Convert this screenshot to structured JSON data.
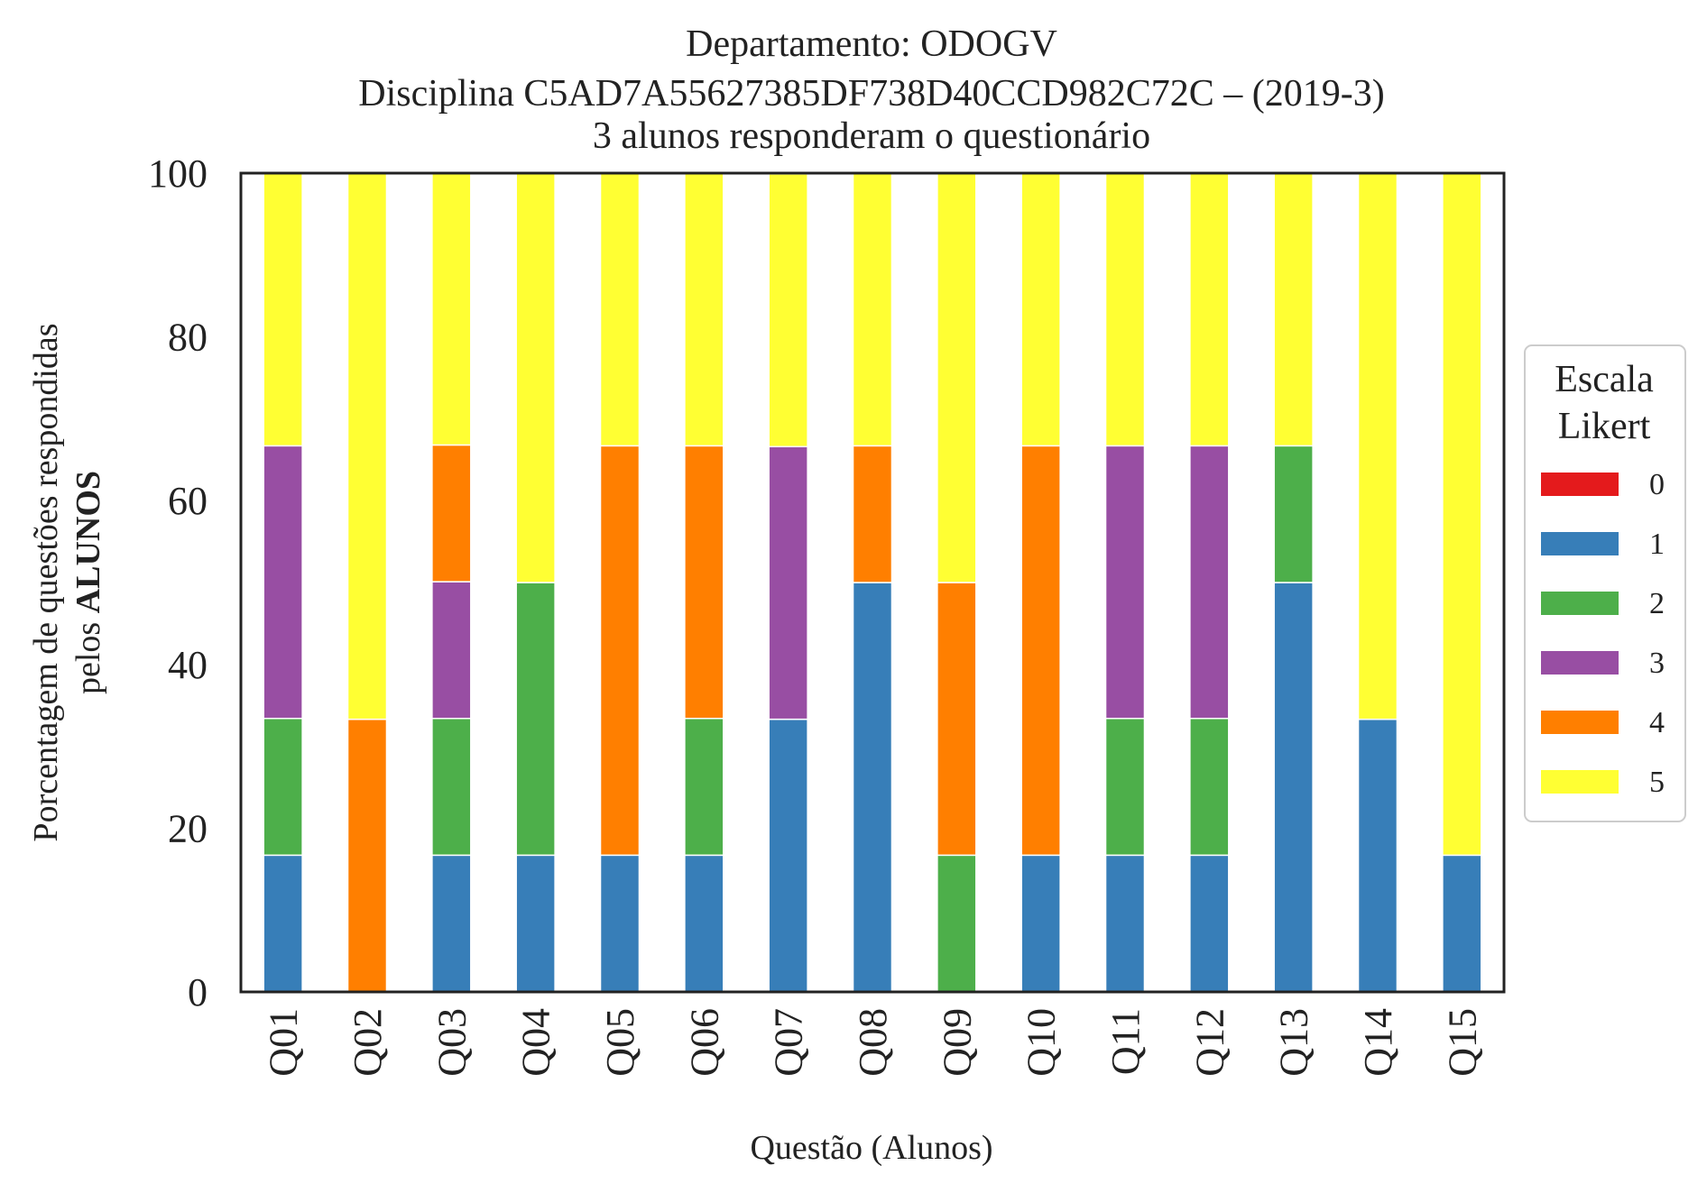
{
  "chart_data": {
    "type": "bar",
    "stacked": true,
    "title_lines": [
      "Departamento: ODOGV",
      "Disciplina C5AD7A55627385DF738D40CCD982C72C – (2019-3)",
      "3 alunos responderam o questionário"
    ],
    "xlabel": "Questão (Alunos)",
    "ylabel_line1": "Porcentagem de questões respondidas",
    "ylabel_line2_prefix": "pelos ",
    "ylabel_line2_bold": "ALUNOS",
    "ylim": [
      0,
      100
    ],
    "yticks": [
      "0",
      "20",
      "40",
      "60",
      "80",
      "100"
    ],
    "categories": [
      "Q01",
      "Q02",
      "Q03",
      "Q04",
      "Q05",
      "Q06",
      "Q07",
      "Q08",
      "Q09",
      "Q10",
      "Q11",
      "Q12",
      "Q13",
      "Q14",
      "Q15"
    ],
    "legend_title_lines": [
      "Escala",
      "Likert"
    ],
    "legend_position": "center-right",
    "series": [
      {
        "name": "0",
        "color": "#e41a1c",
        "values": [
          0,
          0,
          0,
          0,
          0,
          0,
          0,
          0,
          0,
          0,
          0,
          0,
          0,
          0,
          0
        ]
      },
      {
        "name": "1",
        "color": "#377eb8",
        "values": [
          16.7,
          0,
          16.7,
          16.7,
          16.7,
          16.7,
          33.3,
          50,
          0,
          16.7,
          16.7,
          16.7,
          50,
          33.3,
          16.7
        ]
      },
      {
        "name": "2",
        "color": "#4daf4a",
        "values": [
          16.7,
          0,
          16.7,
          33.3,
          0,
          16.7,
          0,
          0,
          16.7,
          0,
          16.7,
          16.7,
          16.7,
          0,
          0
        ]
      },
      {
        "name": "3",
        "color": "#984ea3",
        "values": [
          33.3,
          0,
          16.7,
          0,
          0,
          0,
          33.3,
          0,
          0,
          0,
          33.3,
          33.3,
          0,
          0,
          0
        ]
      },
      {
        "name": "4",
        "color": "#ff7f00",
        "values": [
          0,
          33.3,
          16.7,
          0,
          50,
          33.3,
          0,
          16.7,
          33.3,
          50,
          0,
          0,
          0,
          0,
          0
        ]
      },
      {
        "name": "5",
        "color": "#ffff33",
        "values": [
          33.3,
          66.7,
          33.3,
          50,
          33.3,
          33.3,
          33.3,
          33.3,
          50,
          33.3,
          33.3,
          33.3,
          33.3,
          66.7,
          83.3
        ]
      }
    ]
  }
}
